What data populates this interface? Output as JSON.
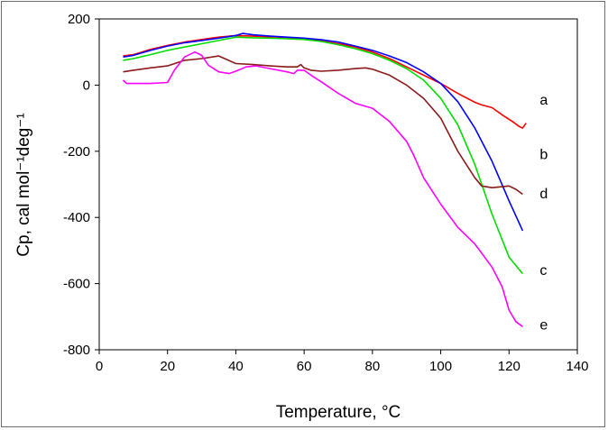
{
  "chart_data": {
    "type": "line",
    "xlabel": "Temperature, °C",
    "ylabel": "Cp, cal mol⁻¹deg⁻¹",
    "xlim": [
      0,
      140
    ],
    "ylim": [
      -800,
      200
    ],
    "xticks": [
      0,
      20,
      40,
      60,
      80,
      100,
      120,
      140
    ],
    "yticks": [
      200,
      0,
      -200,
      -400,
      -600,
      -800
    ],
    "grid": false,
    "legend": "none",
    "series": [
      {
        "name": "a",
        "color": "#ff0000",
        "x": [
          7,
          10,
          15,
          20,
          25,
          30,
          35,
          40,
          45,
          50,
          55,
          60,
          65,
          70,
          75,
          80,
          85,
          90,
          95,
          100,
          105,
          110,
          112,
          115,
          118,
          121,
          123,
          124,
          125
        ],
        "y": [
          88,
          92,
          108,
          120,
          130,
          138,
          145,
          150,
          148,
          146,
          144,
          140,
          133,
          125,
          115,
          100,
          80,
          55,
          30,
          5,
          -25,
          -52,
          -60,
          -68,
          -90,
          -110,
          -125,
          -130,
          -115
        ]
      },
      {
        "name": "b",
        "color": "#0000ff",
        "x": [
          7,
          10,
          15,
          20,
          25,
          30,
          35,
          40,
          42,
          45,
          50,
          55,
          60,
          65,
          70,
          75,
          80,
          85,
          90,
          95,
          100,
          105,
          110,
          115,
          120,
          124
        ],
        "y": [
          85,
          90,
          105,
          118,
          128,
          135,
          142,
          150,
          156,
          152,
          148,
          145,
          142,
          137,
          130,
          118,
          105,
          88,
          68,
          40,
          5,
          -50,
          -130,
          -230,
          -350,
          -440
        ]
      },
      {
        "name": "c",
        "color": "#00dd00",
        "x": [
          7,
          10,
          15,
          20,
          25,
          30,
          35,
          40,
          45,
          50,
          55,
          60,
          65,
          70,
          75,
          80,
          85,
          90,
          95,
          100,
          105,
          110,
          115,
          120,
          124
        ],
        "y": [
          75,
          80,
          92,
          105,
          115,
          125,
          135,
          145,
          143,
          142,
          140,
          138,
          132,
          122,
          110,
          95,
          75,
          50,
          15,
          -40,
          -120,
          -240,
          -390,
          -520,
          -570
        ]
      },
      {
        "name": "d",
        "color": "#8b1a1a",
        "x": [
          7,
          10,
          15,
          20,
          25,
          30,
          35,
          40,
          45,
          50,
          55,
          58,
          59,
          60,
          62,
          65,
          70,
          75,
          78,
          80,
          85,
          90,
          95,
          100,
          105,
          110,
          112,
          115,
          120,
          122,
          124
        ],
        "y": [
          40,
          45,
          52,
          58,
          75,
          80,
          88,
          65,
          62,
          58,
          55,
          55,
          62,
          52,
          45,
          42,
          45,
          50,
          52,
          48,
          30,
          0,
          -40,
          -100,
          -200,
          -280,
          -305,
          -310,
          -305,
          -315,
          -330
        ]
      },
      {
        "name": "e",
        "color": "#ff00ff",
        "x": [
          7,
          8,
          10,
          15,
          20,
          22,
          25,
          28,
          30,
          32,
          35,
          38,
          40,
          43,
          46,
          50,
          55,
          57,
          58,
          60,
          62,
          65,
          70,
          75,
          80,
          85,
          90,
          92,
          95,
          100,
          105,
          110,
          115,
          118,
          120,
          122,
          124
        ],
        "y": [
          15,
          5,
          5,
          5,
          8,
          45,
          85,
          100,
          90,
          60,
          40,
          35,
          42,
          55,
          58,
          50,
          40,
          35,
          45,
          45,
          30,
          10,
          -25,
          -55,
          -70,
          -110,
          -170,
          -210,
          -280,
          -360,
          -430,
          -480,
          -550,
          -610,
          -680,
          -715,
          -730
        ]
      }
    ],
    "annotations": [
      {
        "text": "a",
        "x": 129,
        "y": -45
      },
      {
        "text": "b",
        "x": 129,
        "y": -210
      },
      {
        "text": "d",
        "x": 129,
        "y": -328
      },
      {
        "text": "c",
        "x": 129,
        "y": -560
      },
      {
        "text": "e",
        "x": 129,
        "y": -725
      }
    ]
  }
}
